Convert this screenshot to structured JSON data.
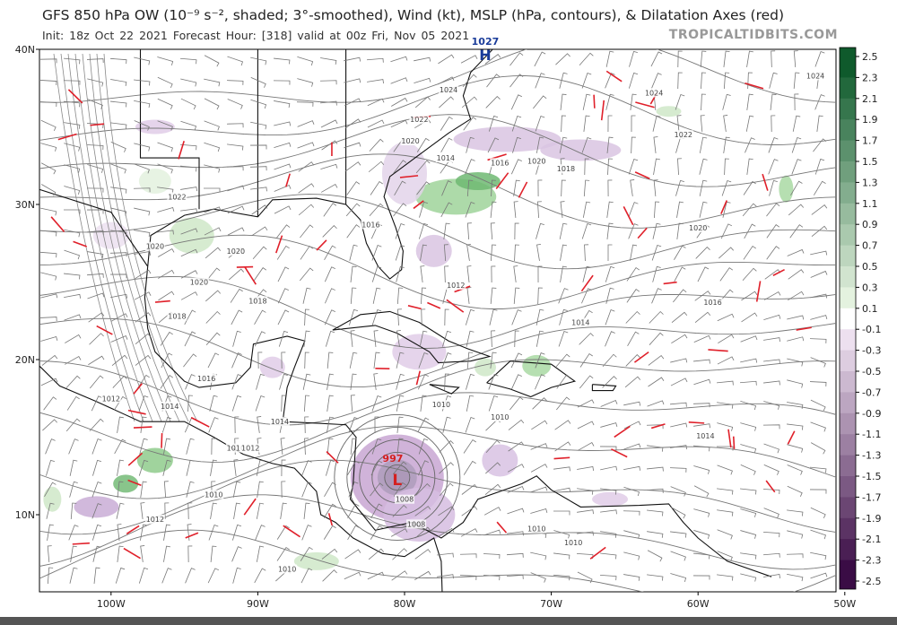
{
  "header": {
    "title": "GFS 850 hPa OW (10⁻⁹ s⁻², shaded; 3°-smoothed), Wind (kt), MSLP (hPa, contours), & Dilatation Axes (red)",
    "subtitle": "Init: 18z Oct 22 2021   Forecast Hour: [318]   valid at 00z Fri, Nov 05 2021",
    "site": "TROPICALTIDBITS.COM"
  },
  "map": {
    "lat_labels": [
      "40N",
      "30N",
      "20N",
      "10N"
    ],
    "lon_labels": [
      "100W",
      "90W",
      "80W",
      "70W",
      "60W",
      "50W"
    ],
    "high": {
      "pressure": "1027",
      "letter": "H"
    },
    "low": {
      "pressure": "997",
      "letter": "L"
    },
    "pressure_labels": [
      "1024",
      "1022",
      "1024",
      "1020",
      "1014",
      "1016",
      "1018",
      "1020",
      "1022",
      "1024",
      "1020",
      "1022",
      "1016",
      "1020",
      "1020",
      "1018",
      "1012",
      "1016",
      "1014",
      "1012",
      "1010",
      "1010",
      "1010",
      "1008",
      "1010",
      "1014",
      "1010",
      "1010",
      "1012",
      "1016",
      "1014",
      "1020",
      "1018",
      "1014",
      "1012",
      "1010",
      "1008"
    ]
  },
  "colorbar": {
    "labels": [
      "2.5",
      "2.3",
      "2.1",
      "1.9",
      "1.7",
      "1.5",
      "1.3",
      "1.1",
      "0.9",
      "0.7",
      "0.5",
      "0.3",
      "0.1",
      "-0.1",
      "-0.3",
      "-0.5",
      "-0.7",
      "-0.9",
      "-1.1",
      "-1.3",
      "-1.5",
      "-1.7",
      "-1.9",
      "-2.1",
      "-2.3",
      "-2.5"
    ],
    "positive_colors": [
      "#0f5a2c",
      "#e4f2df"
    ],
    "negative_colors": [
      "#ede0ef",
      "#3a0c45"
    ]
  }
}
